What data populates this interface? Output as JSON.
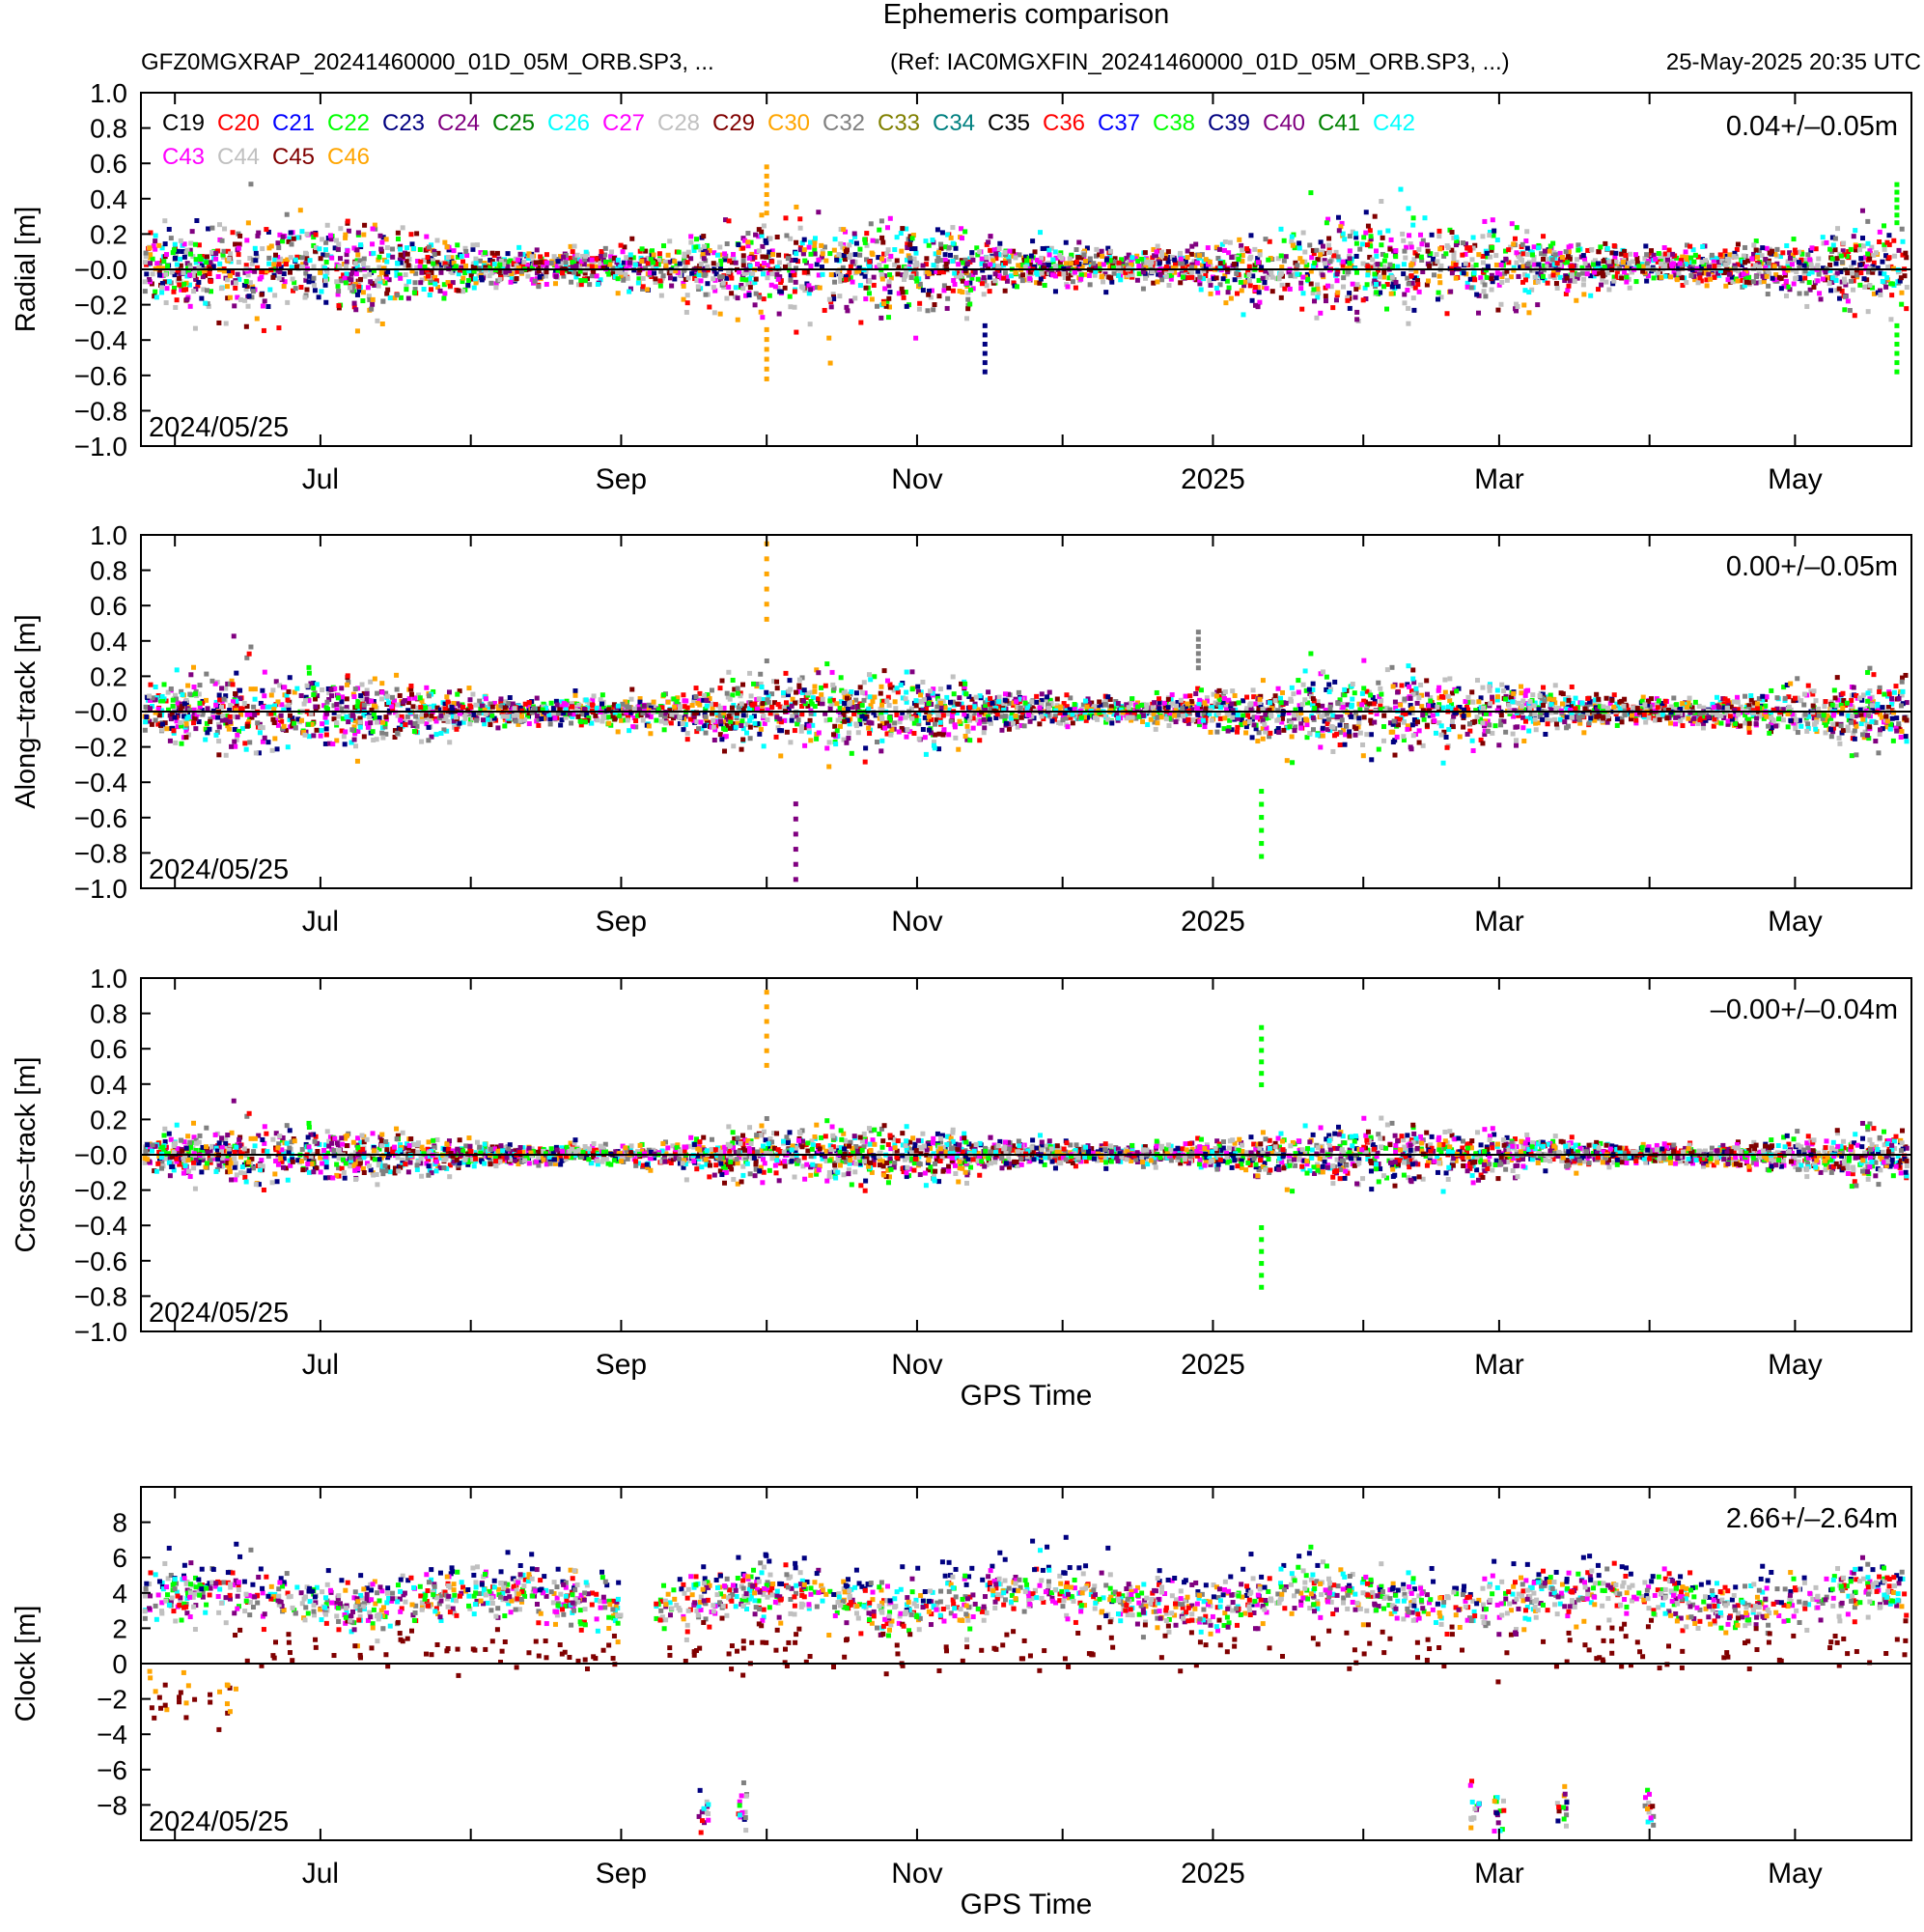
{
  "header": {
    "title": "Ephemeris comparison",
    "product": "GFZ0MGXRAP_20241460000_01D_05M_ORB.SP3, ...",
    "reference": "(Ref: IAC0MGXFIN_20241460000_01D_05M_ORB.SP3, ...)",
    "generated": "25-May-2025 20:35 UTC"
  },
  "legend": [
    {
      "name": "C19",
      "color": "#000000"
    },
    {
      "name": "C20",
      "color": "#ff0000"
    },
    {
      "name": "C21",
      "color": "#0000ff"
    },
    {
      "name": "C22",
      "color": "#00ff00"
    },
    {
      "name": "C23",
      "color": "#000080"
    },
    {
      "name": "C24",
      "color": "#800080"
    },
    {
      "name": "C25",
      "color": "#008000"
    },
    {
      "name": "C26",
      "color": "#00ffff"
    },
    {
      "name": "C27",
      "color": "#ff00ff"
    },
    {
      "name": "C28",
      "color": "#c0c0c0"
    },
    {
      "name": "C29",
      "color": "#800000"
    },
    {
      "name": "C30",
      "color": "#ffa500"
    },
    {
      "name": "C32",
      "color": "#808080"
    },
    {
      "name": "C33",
      "color": "#808000"
    },
    {
      "name": "C34",
      "color": "#008080"
    },
    {
      "name": "C35",
      "color": "#000000"
    },
    {
      "name": "C36",
      "color": "#ff0000"
    },
    {
      "name": "C37",
      "color": "#0000ff"
    },
    {
      "name": "C38",
      "color": "#00ff00"
    },
    {
      "name": "C39",
      "color": "#000080"
    },
    {
      "name": "C40",
      "color": "#800080"
    },
    {
      "name": "C41",
      "color": "#008000"
    },
    {
      "name": "C42",
      "color": "#00ffff"
    },
    {
      "name": "C43",
      "color": "#ff00ff"
    },
    {
      "name": "C44",
      "color": "#c0c0c0"
    },
    {
      "name": "C45",
      "color": "#800000"
    },
    {
      "name": "C46",
      "color": "#ffa500"
    }
  ],
  "chart_data": [
    {
      "type": "scatter",
      "ylabel": "Radial [m]",
      "xlabel": "",
      "ylim": [
        -1.0,
        1.0
      ],
      "yticks": [
        "1.0",
        "0.8",
        "0.6",
        "0.4",
        "0.2",
        "-0.0",
        "-0.2",
        "-0.4",
        "-0.6",
        "-0.8",
        "-1.0"
      ],
      "xlim": [
        "2024-05-25",
        "2025-05-25"
      ],
      "xtick_labels": [
        "Jul",
        "Sep",
        "Nov",
        "2025",
        "Mar",
        "May"
      ],
      "start_label": "2024/05/25",
      "stat": "0.04+/–0.05m",
      "band": {
        "mean": 0.04,
        "sigma": 0.05
      },
      "outliers": [
        {
          "series": "C30",
          "x": "2024-10-01",
          "y": 0.58
        },
        {
          "series": "C30",
          "x": "2024-10-01",
          "y": -0.62
        },
        {
          "series": "C38",
          "x": "2025-05-22",
          "y": 0.48
        },
        {
          "series": "C38",
          "x": "2025-05-22",
          "y": -0.58
        },
        {
          "series": "C39",
          "x": "2024-11-15",
          "y": -0.58
        }
      ],
      "grid": false
    },
    {
      "type": "scatter",
      "ylabel": "Along–track [m]",
      "xlabel": "",
      "ylim": [
        -1.0,
        1.0
      ],
      "yticks": [
        "1.0",
        "0.8",
        "0.6",
        "0.4",
        "0.2",
        "-0.0",
        "-0.2",
        "-0.4",
        "-0.6",
        "-0.8",
        "-1.0"
      ],
      "xlim": [
        "2024-05-25",
        "2025-05-25"
      ],
      "xtick_labels": [
        "Jul",
        "Sep",
        "Nov",
        "2025",
        "Mar",
        "May"
      ],
      "start_label": "2024/05/25",
      "stat": "0.00+/–0.05m",
      "band": {
        "mean": 0.0,
        "sigma": 0.05
      },
      "outliers": [
        {
          "series": "C30",
          "x": "2024-10-01",
          "y": 0.95
        },
        {
          "series": "C40",
          "x": "2024-10-07",
          "y": -0.95
        },
        {
          "series": "C38",
          "x": "2025-01-11",
          "y": -0.82
        },
        {
          "series": "C32",
          "x": "2024-12-29",
          "y": 0.45
        }
      ],
      "grid": false
    },
    {
      "type": "scatter",
      "ylabel": "Cross–track [m]",
      "xlabel": "GPS Time",
      "ylim": [
        -1.0,
        1.0
      ],
      "yticks": [
        "1.0",
        "0.8",
        "0.6",
        "0.4",
        "0.2",
        "-0.0",
        "-0.2",
        "-0.4",
        "-0.6",
        "-0.8",
        "-1.0"
      ],
      "xlim": [
        "2024-05-25",
        "2025-05-25"
      ],
      "xtick_labels": [
        "Jul",
        "Sep",
        "Nov",
        "2025",
        "Mar",
        "May"
      ],
      "start_label": "2024/05/25",
      "stat": "–0.00+/–0.04m",
      "band": {
        "mean": 0.0,
        "sigma": 0.04
      },
      "outliers": [
        {
          "series": "C30",
          "x": "2024-10-01",
          "y": 0.92
        },
        {
          "series": "C38",
          "x": "2025-01-11",
          "y": 0.72
        },
        {
          "series": "C38",
          "x": "2025-01-11",
          "y": -0.75
        }
      ],
      "grid": false
    },
    {
      "type": "scatter",
      "ylabel": "Clock [m]",
      "xlabel": "GPS Time",
      "ylim": [
        -10.0,
        10.0
      ],
      "yticks": [
        "8",
        "6",
        "4",
        "2",
        "0",
        "-2",
        "-4",
        "-6",
        "-8"
      ],
      "xlim": [
        "2024-05-25",
        "2025-05-25"
      ],
      "xtick_labels": [
        "Jul",
        "Sep",
        "Nov",
        "2025",
        "Mar",
        "May"
      ],
      "start_label": "2024/05/25",
      "stat": "2.66+/–2.64m",
      "band": {
        "mean": 2.66,
        "sigma": 2.64
      },
      "grid": false
    }
  ]
}
